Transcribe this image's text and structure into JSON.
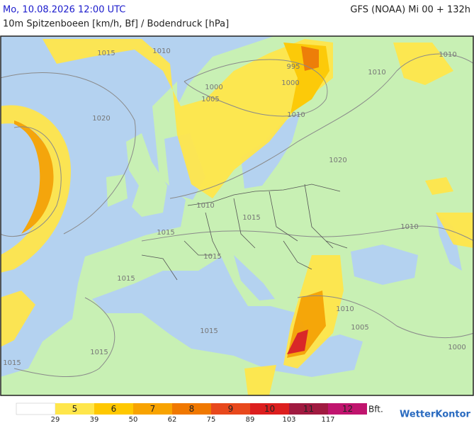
{
  "header": {
    "title": "Mo, 10.08.2026 12:00 UTC",
    "model": "GFS (NOAA) Mi 00 + 132h",
    "subtitle": "10m Spitzenboeen [km/h, Bf] / Bodendruck [hPa]"
  },
  "isobar_labels": [
    "1015",
    "1010",
    "1020",
    "1000",
    "1005",
    "995",
    "1000",
    "1010",
    "1010",
    "1010",
    "1020",
    "1010",
    "1015",
    "1015",
    "1015",
    "1015",
    "1010",
    "1010",
    "1005",
    "1000",
    "1015",
    "1015",
    "1015"
  ],
  "legend": {
    "levels": [
      {
        "label": "5",
        "color": "#ffe64b"
      },
      {
        "label": "6",
        "color": "#ffc800"
      },
      {
        "label": "7",
        "color": "#f8a300"
      },
      {
        "label": "8",
        "color": "#f07800"
      },
      {
        "label": "9",
        "color": "#e8481c"
      },
      {
        "label": "10",
        "color": "#dc1e1e"
      },
      {
        "label": "11",
        "color": "#a01a40"
      },
      {
        "label": "12",
        "color": "#c0146e"
      }
    ],
    "thresholds": [
      "29",
      "39",
      "50",
      "62",
      "75",
      "89",
      "103",
      "117"
    ],
    "unit": "Bft."
  },
  "brand": "WetterKontor"
}
